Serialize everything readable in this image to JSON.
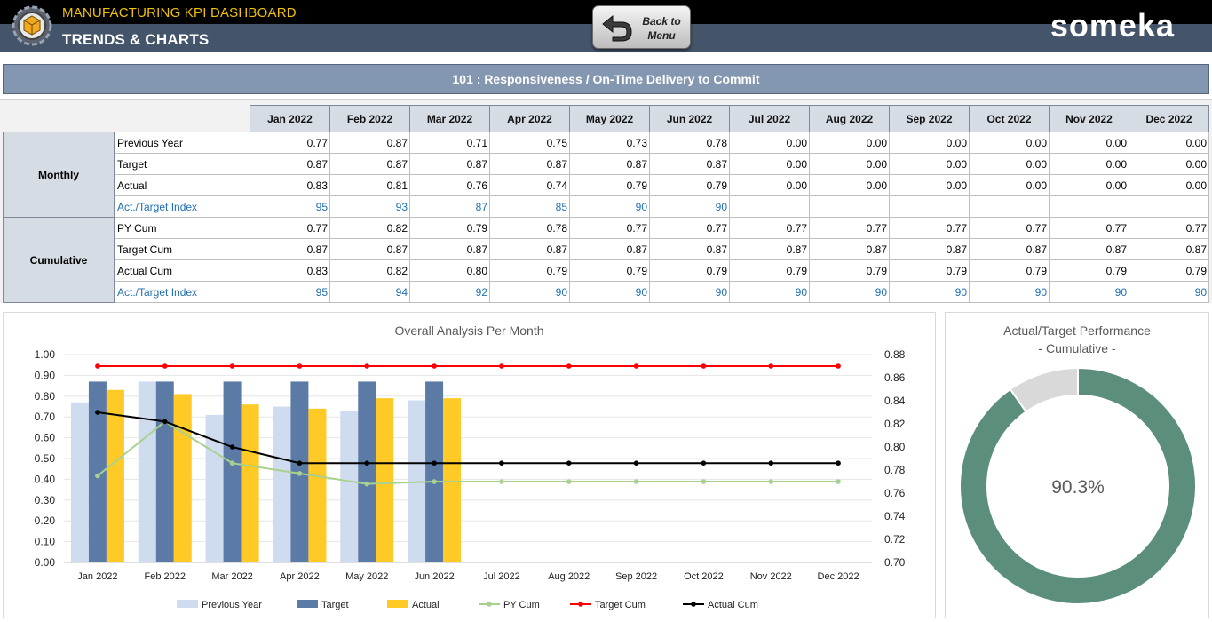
{
  "header": {
    "app_title": "MANUFACTURING KPI DASHBOARD",
    "page_title": "TRENDS & CHARTS",
    "back_button_label": "Back to\nMenu",
    "brand": "someka",
    "logo_icon": "gear-box-icon",
    "back_icon": "back-arrow-icon"
  },
  "kpi": {
    "title": "101 : Responsiveness / On-Time Delivery to Commit"
  },
  "table": {
    "months": [
      "Jan 2022",
      "Feb 2022",
      "Mar 2022",
      "Apr 2022",
      "May 2022",
      "Jun 2022",
      "Jul 2022",
      "Aug 2022",
      "Sep 2022",
      "Oct 2022",
      "Nov 2022",
      "Dec 2022"
    ],
    "groups": [
      {
        "label": "Monthly",
        "rows": [
          {
            "label": "Previous Year",
            "values": [
              "0.77",
              "0.87",
              "0.71",
              "0.75",
              "0.73",
              "0.78",
              "0.00",
              "0.00",
              "0.00",
              "0.00",
              "0.00",
              "0.00"
            ]
          },
          {
            "label": "Target",
            "values": [
              "0.87",
              "0.87",
              "0.87",
              "0.87",
              "0.87",
              "0.87",
              "0.00",
              "0.00",
              "0.00",
              "0.00",
              "0.00",
              "0.00"
            ]
          },
          {
            "label": "Actual",
            "values": [
              "0.83",
              "0.81",
              "0.76",
              "0.74",
              "0.79",
              "0.79",
              "0.00",
              "0.00",
              "0.00",
              "0.00",
              "0.00",
              "0.00"
            ]
          },
          {
            "label": "Act./Target Index",
            "index": true,
            "values": [
              "95",
              "93",
              "87",
              "85",
              "90",
              "90",
              "",
              "",
              "",
              "",
              "",
              ""
            ]
          }
        ]
      },
      {
        "label": "Cumulative",
        "rows": [
          {
            "label": "PY Cum",
            "values": [
              "0.77",
              "0.82",
              "0.79",
              "0.78",
              "0.77",
              "0.77",
              "0.77",
              "0.77",
              "0.77",
              "0.77",
              "0.77",
              "0.77"
            ]
          },
          {
            "label": "Target Cum",
            "values": [
              "0.87",
              "0.87",
              "0.87",
              "0.87",
              "0.87",
              "0.87",
              "0.87",
              "0.87",
              "0.87",
              "0.87",
              "0.87",
              "0.87"
            ]
          },
          {
            "label": "Actual Cum",
            "values": [
              "0.83",
              "0.82",
              "0.80",
              "0.79",
              "0.79",
              "0.79",
              "0.79",
              "0.79",
              "0.79",
              "0.79",
              "0.79",
              "0.79"
            ]
          },
          {
            "label": "Act./Target Index",
            "index": true,
            "values": [
              "95",
              "94",
              "92",
              "90",
              "90",
              "90",
              "90",
              "90",
              "90",
              "90",
              "90",
              "90"
            ]
          }
        ]
      }
    ]
  },
  "chart_data": [
    {
      "type": "bar",
      "title": "Overall Analysis Per Month",
      "categories": [
        "Jan 2022",
        "Feb 2022",
        "Mar 2022",
        "Apr 2022",
        "May 2022",
        "Jun 2022",
        "Jul 2022",
        "Aug 2022",
        "Sep 2022",
        "Oct 2022",
        "Nov 2022",
        "Dec 2022"
      ],
      "ylim": [
        0,
        1.0
      ],
      "y_ticks": [
        "0.00",
        "0.10",
        "0.20",
        "0.30",
        "0.40",
        "0.50",
        "0.60",
        "0.70",
        "0.80",
        "0.90",
        "1.00"
      ],
      "y2lim": [
        0.7,
        0.88
      ],
      "y2_ticks": [
        "0.70",
        "0.72",
        "0.74",
        "0.76",
        "0.78",
        "0.80",
        "0.82",
        "0.84",
        "0.86",
        "0.88"
      ],
      "series": [
        {
          "name": "Previous Year",
          "kind": "bar",
          "axis": "left",
          "color": "#cfdcef",
          "values": [
            0.77,
            0.87,
            0.71,
            0.75,
            0.73,
            0.78,
            null,
            null,
            null,
            null,
            null,
            null
          ]
        },
        {
          "name": "Target",
          "kind": "bar",
          "axis": "left",
          "color": "#5b7ba6",
          "values": [
            0.87,
            0.87,
            0.87,
            0.87,
            0.87,
            0.87,
            null,
            null,
            null,
            null,
            null,
            null
          ]
        },
        {
          "name": "Actual",
          "kind": "bar",
          "axis": "left",
          "color": "#ffc926",
          "values": [
            0.83,
            0.81,
            0.76,
            0.74,
            0.79,
            0.79,
            null,
            null,
            null,
            null,
            null,
            null
          ]
        },
        {
          "name": "PY Cum",
          "kind": "line",
          "axis": "right",
          "color": "#a9d18e",
          "values": [
            0.775,
            0.822,
            0.786,
            0.777,
            0.768,
            0.77,
            0.77,
            0.77,
            0.77,
            0.77,
            0.77,
            0.77
          ]
        },
        {
          "name": "Target Cum",
          "kind": "line",
          "axis": "right",
          "color": "#ff0000",
          "values": [
            0.87,
            0.87,
            0.87,
            0.87,
            0.87,
            0.87,
            0.87,
            0.87,
            0.87,
            0.87,
            0.87,
            0.87
          ]
        },
        {
          "name": "Actual Cum",
          "kind": "line",
          "axis": "right",
          "color": "#000000",
          "values": [
            0.83,
            0.822,
            0.8,
            0.786,
            0.786,
            0.786,
            0.786,
            0.786,
            0.786,
            0.786,
            0.786,
            0.786
          ]
        }
      ],
      "legend": "bottom",
      "grid": true
    },
    {
      "type": "pie",
      "title": "Actual/Target Performance",
      "subtitle": "- Cumulative -",
      "center_label": "90.3%",
      "slices": [
        {
          "value": 90.3,
          "color": "#5b8f7b"
        },
        {
          "value": 9.7,
          "color": "#d9d9d9"
        }
      ]
    }
  ]
}
